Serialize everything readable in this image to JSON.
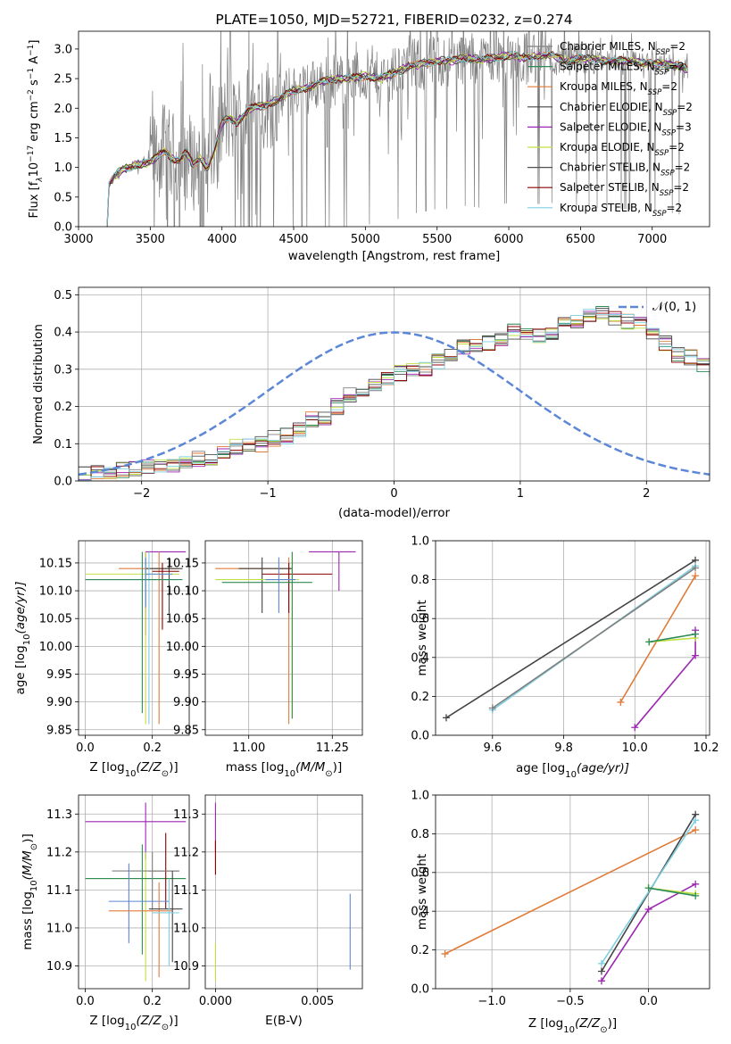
{
  "colors": {
    "chabrier_miles": "#808080",
    "salpeter_miles": "#2e8b57",
    "kroupa_miles": "#e07b39",
    "chabrier_elodie": "#444444",
    "salpeter_elodie": "#9c27b0",
    "kroupa_elodie": "#c0e040",
    "chabrier_stelib": "#505050",
    "salpeter_stelib": "#8b0000",
    "kroupa_stelib": "#7ecfe0",
    "normal_curve": "#5b87d6",
    "grid": "#b0b0b0"
  },
  "chart_data": [
    {
      "id": "spectrum",
      "type": "line",
      "title": "PLATE=1050, MJD=52721, FIBERID=0232, z=0.274",
      "xlabel": "wavelength [Angstrom, rest frame]",
      "ylabel": "Flux [f",
      "ylabel_sub": "λ",
      "ylabel_mid": "10",
      "ylabel_exp1": "−17",
      "ylabel_mid2": " erg cm",
      "ylabel_exp2": "−2",
      "ylabel_mid3": " s",
      "ylabel_exp3": "−1",
      "ylabel_mid4": " A",
      "ylabel_exp4": "−1",
      "ylabel_end": "]",
      "xlim": [
        3000,
        7400
      ],
      "ylim": [
        0,
        3.3
      ],
      "xticks": [
        "3000",
        "3500",
        "4000",
        "4500",
        "5000",
        "5500",
        "6000",
        "6500",
        "7000"
      ],
      "yticks": [
        "0.0",
        "0.5",
        "1.0",
        "1.5",
        "2.0",
        "2.5",
        "3.0"
      ],
      "legend_loc": "right",
      "legend": [
        {
          "label": "Chabrier MILES, N",
          "sub": "SSP",
          "suffix": "=2"
        },
        {
          "label": "Salpeter MILES, N",
          "sub": "SSP",
          "suffix": "=2"
        },
        {
          "label": "Kroupa MILES, N",
          "sub": "SSP",
          "suffix": "=2"
        },
        {
          "label": "Chabrier ELODIE, N",
          "sub": "SSP",
          "suffix": "=2"
        },
        {
          "label": "Salpeter ELODIE, N",
          "sub": "SSP",
          "suffix": "=3"
        },
        {
          "label": "Kroupa ELODIE, N",
          "sub": "SSP",
          "suffix": "=2"
        },
        {
          "label": "Chabrier STELIB, N",
          "sub": "SSP",
          "suffix": "=2"
        },
        {
          "label": "Salpeter STELIB, N",
          "sub": "SSP",
          "suffix": "=2"
        },
        {
          "label": "Kroupa STELIB, N",
          "sub": "SSP",
          "suffix": "=2"
        }
      ],
      "model_profile": [
        [
          3200,
          0.0
        ],
        [
          3210,
          0.7
        ],
        [
          3250,
          0.85
        ],
        [
          3300,
          0.95
        ],
        [
          3350,
          1.0
        ],
        [
          3400,
          1.05
        ],
        [
          3500,
          1.08
        ],
        [
          3550,
          1.2
        ],
        [
          3600,
          1.3
        ],
        [
          3650,
          1.15
        ],
        [
          3700,
          1.1
        ],
        [
          3750,
          1.25
        ],
        [
          3800,
          1.05
        ],
        [
          3850,
          1.15
        ],
        [
          3900,
          1.0
        ],
        [
          3950,
          1.3
        ],
        [
          4000,
          1.75
        ],
        [
          4050,
          1.85
        ],
        [
          4100,
          1.75
        ],
        [
          4200,
          2.0
        ],
        [
          4300,
          2.05
        ],
        [
          4400,
          2.15
        ],
        [
          4500,
          2.3
        ],
        [
          4600,
          2.35
        ],
        [
          4700,
          2.45
        ],
        [
          4800,
          2.5
        ],
        [
          4900,
          2.5
        ],
        [
          5000,
          2.55
        ],
        [
          5100,
          2.5
        ],
        [
          5200,
          2.6
        ],
        [
          5300,
          2.7
        ],
        [
          5400,
          2.75
        ],
        [
          5500,
          2.8
        ],
        [
          5600,
          2.8
        ],
        [
          5700,
          2.85
        ],
        [
          5800,
          2.82
        ],
        [
          5900,
          2.85
        ],
        [
          6000,
          2.9
        ],
        [
          6100,
          2.85
        ],
        [
          6200,
          2.88
        ],
        [
          6300,
          2.9
        ],
        [
          6400,
          2.8
        ],
        [
          6500,
          2.85
        ],
        [
          6600,
          2.82
        ],
        [
          6700,
          2.8
        ],
        [
          6800,
          2.8
        ],
        [
          6900,
          2.78
        ],
        [
          7000,
          2.75
        ],
        [
          7100,
          2.75
        ],
        [
          7200,
          2.7
        ],
        [
          7250,
          2.65
        ]
      ]
    },
    {
      "id": "residuals",
      "type": "histogram",
      "xlabel": "(data-model)/error",
      "ylabel": "Normed distribution",
      "xlim": [
        -2.5,
        2.5
      ],
      "ylim": [
        0,
        0.52
      ],
      "xticks": [
        "−2",
        "−1",
        "0",
        "1",
        "2"
      ],
      "yticks": [
        "0.0",
        "0.1",
        "0.2",
        "0.3",
        "0.4",
        "0.5"
      ],
      "legend_loc": "top-right",
      "legend_label": "𝒩(0, 1)",
      "bin_width": 0.1,
      "bin_start": -2.5,
      "base_values": [
        0.018,
        0.022,
        0.025,
        0.03,
        0.03,
        0.035,
        0.04,
        0.045,
        0.05,
        0.06,
        0.065,
        0.075,
        0.09,
        0.1,
        0.1,
        0.115,
        0.12,
        0.14,
        0.165,
        0.17,
        0.2,
        0.23,
        0.24,
        0.255,
        0.27,
        0.29,
        0.3,
        0.3,
        0.32,
        0.34,
        0.36,
        0.365,
        0.37,
        0.38,
        0.4,
        0.395,
        0.39,
        0.4,
        0.43,
        0.43,
        0.44,
        0.45,
        0.44,
        0.43,
        0.42,
        0.4,
        0.37,
        0.34,
        0.33,
        0.31,
        0.29,
        0.28,
        0.27,
        0.24,
        0.23,
        0.2,
        0.2,
        0.18,
        0.16,
        0.15,
        0.14,
        0.14,
        0.11,
        0.1,
        0.09,
        0.085,
        0.08,
        0.07,
        0.065,
        0.06,
        0.055,
        0.05,
        0.05,
        0.045,
        0.04,
        0.035,
        0.03,
        0.03,
        0.03,
        0.028,
        0.028,
        0.027,
        0.027,
        0.026,
        0.025,
        0.025,
        0.028,
        0.03,
        0.03,
        0.03,
        0.032,
        0.032,
        0.033,
        0.035,
        0.035,
        0.035,
        0.035,
        0.035,
        0.04,
        0.04
      ]
    },
    {
      "id": "age_vs_Z",
      "type": "errorbar",
      "xlabel": "Z [log",
      "xlabel_sub": "10",
      "xlabel_end": "(Z/Z",
      "xlabel_sun": "⊙",
      "xlabel_close": ")]",
      "ylabel": "age  [log",
      "ylabel_sub": "10",
      "ylabel_end": "(age/yr)]",
      "xlim": [
        -0.02,
        0.31
      ],
      "ylim": [
        9.84,
        10.19
      ],
      "xticks": [
        "0.0",
        "0.2"
      ],
      "yticks": [
        "9.85",
        "9.90",
        "9.95",
        "10.00",
        "10.05",
        "10.10",
        "10.15"
      ],
      "points": [
        {
          "series": "salpeter_elodie",
          "x": 0.18,
          "y": 10.17,
          "xerr": [
            0.18,
            0.3
          ],
          "yerr": [
            10.02,
            10.17
          ]
        },
        {
          "series": "kroupa_miles",
          "x": 0.22,
          "y": 10.14,
          "xerr": [
            0.1,
            0.28
          ],
          "yerr": [
            9.86,
            10.17
          ]
        },
        {
          "series": "chabrier_elodie",
          "x": 0.25,
          "y": 10.14,
          "xerr": [
            0.18,
            0.29
          ],
          "yerr": [
            10.06,
            10.16
          ]
        },
        {
          "series": "salpeter_stelib",
          "x": 0.23,
          "y": 10.135,
          "xerr": [
            0.2,
            0.28
          ],
          "yerr": [
            10.03,
            10.15
          ]
        },
        {
          "series": "kroupa_elodie",
          "x": 0.18,
          "y": 10.13,
          "xerr": [
            0.0,
            0.28
          ],
          "yerr": [
            9.86,
            10.17
          ]
        },
        {
          "series": "kroupa_stelib",
          "x": 0.19,
          "y": 10.12,
          "xerr": [
            0.0,
            0.27
          ],
          "yerr": [
            9.86,
            10.17
          ]
        },
        {
          "series": "salpeter_miles",
          "x": 0.17,
          "y": 10.12,
          "xerr": [
            0.0,
            0.29
          ],
          "yerr": [
            9.88,
            10.17
          ]
        },
        {
          "series": "normal_curve",
          "x": 0.18,
          "y": 10.13,
          "xerr": [
            0.18,
            0.26
          ],
          "yerr": [
            10.07,
            10.16
          ]
        }
      ]
    },
    {
      "id": "age_vs_mass",
      "type": "errorbar",
      "xlabel": "mass [log",
      "xlabel_sub": "10",
      "xlabel_end": "(M/M",
      "xlabel_sun": "⊙",
      "xlabel_close": ")]",
      "xlim": [
        10.87,
        11.34
      ],
      "ylim": [
        9.84,
        10.19
      ],
      "xticks": [
        "11.00",
        "11.25"
      ],
      "yticks": [
        "9.85",
        "9.90",
        "9.95",
        "10.00",
        "10.05",
        "10.10",
        "10.15"
      ],
      "points": [
        {
          "series": "salpeter_elodie",
          "x": 11.27,
          "y": 10.17,
          "xerr": [
            11.18,
            11.32
          ],
          "yerr": [
            10.1,
            10.17
          ]
        },
        {
          "series": "kroupa_miles",
          "x": 11.12,
          "y": 10.14,
          "xerr": [
            10.9,
            11.13
          ],
          "yerr": [
            9.86,
            10.16
          ]
        },
        {
          "series": "chabrier_elodie",
          "x": 11.04,
          "y": 10.14,
          "xerr": [
            10.97,
            11.13
          ],
          "yerr": [
            10.06,
            10.16
          ]
        },
        {
          "series": "salpeter_stelib",
          "x": 11.12,
          "y": 10.13,
          "xerr": [
            11.04,
            11.25
          ],
          "yerr": [
            10.06,
            10.15
          ]
        },
        {
          "series": "kroupa_elodie",
          "x": 11.13,
          "y": 10.12,
          "xerr": [
            10.9,
            11.15
          ],
          "yerr": [
            9.87,
            10.17
          ]
        },
        {
          "series": "salpeter_miles",
          "x": 11.13,
          "y": 10.115,
          "xerr": [
            10.92,
            11.19
          ],
          "yerr": [
            9.87,
            10.17
          ]
        },
        {
          "series": "normal_curve",
          "x": 11.09,
          "y": 10.12,
          "xerr": [
            11.05,
            11.14
          ],
          "yerr": [
            10.06,
            10.16
          ]
        }
      ]
    },
    {
      "id": "mass_weight_vs_age",
      "type": "line",
      "xlabel": "age  [log",
      "xlabel_sub": "10",
      "xlabel_end": "(age/yr)]",
      "ylabel": "mass weight",
      "xlim": [
        9.44,
        10.21
      ],
      "ylim": [
        0,
        1.0
      ],
      "xticks": [
        "9.6",
        "9.8",
        "10.0",
        "10.2"
      ],
      "yticks": [
        "0.0",
        "0.2",
        "0.4",
        "0.6",
        "0.8",
        "1.0"
      ],
      "series": [
        {
          "series": "chabrier_elodie",
          "x": [
            9.47,
            10.17
          ],
          "y": [
            0.09,
            0.9
          ]
        },
        {
          "series": "kroupa_stelib",
          "x": [
            9.6,
            10.17
          ],
          "y": [
            0.13,
            0.87
          ]
        },
        {
          "series": "chabrier_miles",
          "x": [
            9.6,
            10.17
          ],
          "y": [
            0.14,
            0.86
          ]
        },
        {
          "series": "kroupa_miles",
          "x": [
            9.96,
            10.17
          ],
          "y": [
            0.17,
            0.82
          ]
        },
        {
          "series": "salpeter_elodie",
          "x": [
            10.0,
            10.17,
            10.17
          ],
          "y": [
            0.04,
            0.41,
            0.54
          ]
        },
        {
          "series": "kroupa_elodie",
          "x": [
            10.04,
            10.17
          ],
          "y": [
            0.48,
            0.5
          ]
        },
        {
          "series": "salpeter_miles",
          "x": [
            10.04,
            10.17
          ],
          "y": [
            0.48,
            0.52
          ]
        }
      ]
    },
    {
      "id": "mass_vs_Z",
      "type": "errorbar",
      "xlabel": "Z [log",
      "xlabel_sub": "10",
      "xlabel_end": "(Z/Z",
      "xlabel_sun": "⊙",
      "xlabel_close": ")]",
      "ylabel": "mass [log",
      "ylabel_sub": "10",
      "ylabel_end": "(M/M",
      "ylabel_sun": "⊙",
      "ylabel_close": ")]",
      "xlim": [
        -0.02,
        0.31
      ],
      "ylim": [
        10.84,
        11.35
      ],
      "xticks": [
        "0.0",
        "0.2"
      ],
      "yticks": [
        "10.9",
        "11.0",
        "11.1",
        "11.2",
        "11.3"
      ],
      "points": [
        {
          "series": "salpeter_elodie",
          "x": 0.18,
          "y": 11.28,
          "xerr": [
            0.0,
            0.3
          ],
          "yerr": [
            11.18,
            11.33
          ]
        },
        {
          "series": "kroupa_elodie",
          "x": 0.18,
          "y": 11.13,
          "xerr": [
            0.0,
            0.3
          ],
          "yerr": [
            10.86,
            11.2
          ]
        },
        {
          "series": "salpeter_miles",
          "x": 0.17,
          "y": 11.13,
          "xerr": [
            0.0,
            0.3
          ],
          "yerr": [
            10.93,
            11.22
          ]
        },
        {
          "series": "salpeter_stelib",
          "x": 0.24,
          "y": 11.15,
          "xerr": [
            0.19,
            0.28
          ],
          "yerr": [
            11.05,
            11.25
          ]
        },
        {
          "series": "chabrier_miles",
          "x": 0.2,
          "y": 11.15,
          "xerr": [
            0.08,
            0.28
          ],
          "yerr": [
            11.05,
            11.2
          ]
        },
        {
          "series": "normal_curve",
          "x": 0.13,
          "y": 11.07,
          "xerr": [
            0.07,
            0.25
          ],
          "yerr": [
            10.96,
            11.17
          ]
        },
        {
          "series": "kroupa_miles",
          "x": 0.22,
          "y": 11.045,
          "xerr": [
            0.07,
            0.26
          ],
          "yerr": [
            10.87,
            11.12
          ]
        },
        {
          "series": "chabrier_elodie",
          "x": 0.26,
          "y": 11.05,
          "xerr": [
            0.19,
            0.29
          ],
          "yerr": [
            10.91,
            11.15
          ]
        },
        {
          "series": "kroupa_stelib",
          "x": 0.25,
          "y": 11.04,
          "xerr": [
            0.2,
            0.28
          ],
          "yerr": [
            10.9,
            11.13
          ]
        }
      ]
    },
    {
      "id": "mass_vs_ebv",
      "type": "errorbar",
      "xlabel": "E(B-V)",
      "xlim": [
        -0.0005,
        0.0072
      ],
      "ylim": [
        10.84,
        11.35
      ],
      "xticks": [
        "0.000",
        "0.005"
      ],
      "yticks": [
        "10.9",
        "11.0",
        "11.1",
        "11.2",
        "11.3"
      ],
      "points": [
        {
          "series": "salpeter_elodie",
          "x": 0.0,
          "y": 11.28,
          "yerr": [
            11.2,
            11.33
          ]
        },
        {
          "series": "salpeter_stelib",
          "x": 0.0,
          "y": 11.18,
          "yerr": [
            11.14,
            11.23
          ]
        },
        {
          "series": "kroupa_elodie",
          "x": 0.0,
          "y": 10.9,
          "yerr": [
            10.86,
            10.96
          ]
        },
        {
          "series": "normal_curve",
          "x": 0.0066,
          "y": 10.99,
          "yerr": [
            10.89,
            11.09
          ]
        }
      ]
    },
    {
      "id": "mass_weight_vs_Z",
      "type": "line",
      "xlabel": "Z [log",
      "xlabel_sub": "10",
      "xlabel_end": "(Z/Z",
      "xlabel_sun": "⊙",
      "xlabel_close": ")]",
      "ylabel": "mass weight",
      "xlim": [
        -1.36,
        0.39
      ],
      "ylim": [
        0,
        1.0
      ],
      "xticks": [
        "−1.0",
        "−0.5",
        "0.0"
      ],
      "yticks": [
        "0.0",
        "0.2",
        "0.4",
        "0.6",
        "0.8",
        "1.0"
      ],
      "series": [
        {
          "series": "kroupa_miles",
          "x": [
            -1.3,
            0.3
          ],
          "y": [
            0.18,
            0.82
          ]
        },
        {
          "series": "chabrier_elodie",
          "x": [
            -0.3,
            0.3
          ],
          "y": [
            0.09,
            0.9
          ]
        },
        {
          "series": "kroupa_stelib",
          "x": [
            -0.3,
            0.3
          ],
          "y": [
            0.13,
            0.87
          ]
        },
        {
          "series": "salpeter_elodie",
          "x": [
            -0.3,
            0.0,
            0.3
          ],
          "y": [
            0.04,
            0.41,
            0.54
          ]
        },
        {
          "series": "kroupa_elodie",
          "x": [
            0.0,
            0.3
          ],
          "y": [
            0.52,
            0.49
          ]
        },
        {
          "series": "salpeter_miles",
          "x": [
            0.0,
            0.3
          ],
          "y": [
            0.52,
            0.48
          ]
        }
      ]
    }
  ]
}
